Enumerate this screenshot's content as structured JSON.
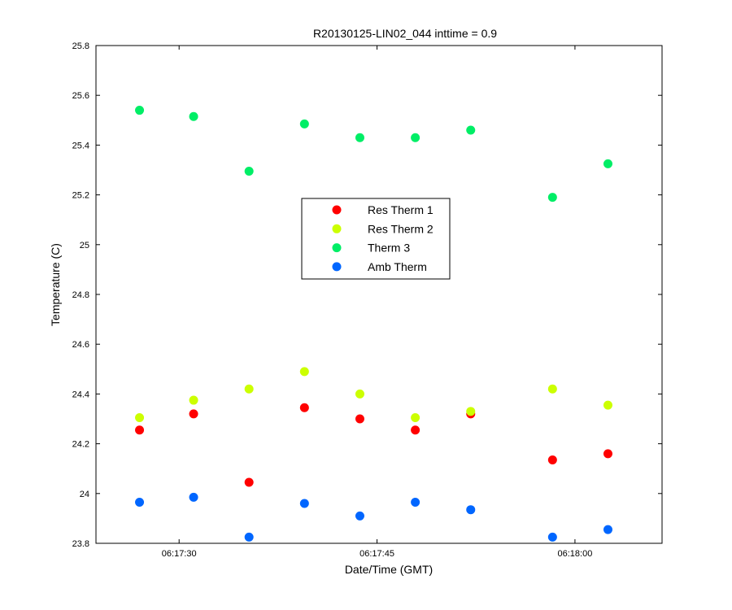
{
  "chart_data": {
    "type": "scatter",
    "title": "R20130125-LIN02_044 inttime = 0.9",
    "xlabel": "Date/Time (GMT)",
    "ylabel": "Temperature (C)",
    "x_axis": {
      "unit": "seconds past 06:17:00",
      "range": [
        23.7,
        66.6
      ],
      "ticks": [
        {
          "value": 30,
          "label": "06:17:30"
        },
        {
          "value": 45,
          "label": "06:17:45"
        },
        {
          "value": 60,
          "label": "06:18:00"
        }
      ]
    },
    "y_axis": {
      "range": [
        23.8,
        25.8
      ],
      "ticks": [
        {
          "value": 23.8,
          "label": "23.8"
        },
        {
          "value": 24.0,
          "label": "24"
        },
        {
          "value": 24.2,
          "label": "24.2"
        },
        {
          "value": 24.4,
          "label": "24.4"
        },
        {
          "value": 24.6,
          "label": "24.6"
        },
        {
          "value": 24.8,
          "label": "24.8"
        },
        {
          "value": 25.0,
          "label": "25"
        },
        {
          "value": 25.2,
          "label": "25.2"
        },
        {
          "value": 25.4,
          "label": "25.4"
        },
        {
          "value": 25.6,
          "label": "25.6"
        },
        {
          "value": 25.8,
          "label": "25.8"
        }
      ]
    },
    "x": [
      27.0,
      31.1,
      35.3,
      39.5,
      43.7,
      47.9,
      52.1,
      58.3,
      62.5
    ],
    "grid": false,
    "legend_position": "center",
    "series": [
      {
        "name": "Res Therm 1",
        "color": "#ff0000",
        "values": [
          24.255,
          24.32,
          24.045,
          24.345,
          24.3,
          24.255,
          24.32,
          24.135,
          24.16
        ]
      },
      {
        "name": "Res Therm 2",
        "color": "#ccff00",
        "values": [
          24.305,
          24.375,
          24.42,
          24.49,
          24.4,
          24.305,
          24.33,
          24.42,
          24.355
        ]
      },
      {
        "name": "Therm 3",
        "color": "#00ee66",
        "values": [
          25.54,
          25.515,
          25.295,
          25.485,
          25.43,
          25.43,
          25.46,
          25.19,
          25.325
        ]
      },
      {
        "name": "Amb Therm",
        "color": "#0066ff",
        "values": [
          23.965,
          23.985,
          23.825,
          23.96,
          23.91,
          23.965,
          23.935,
          23.825,
          23.855
        ]
      }
    ]
  }
}
